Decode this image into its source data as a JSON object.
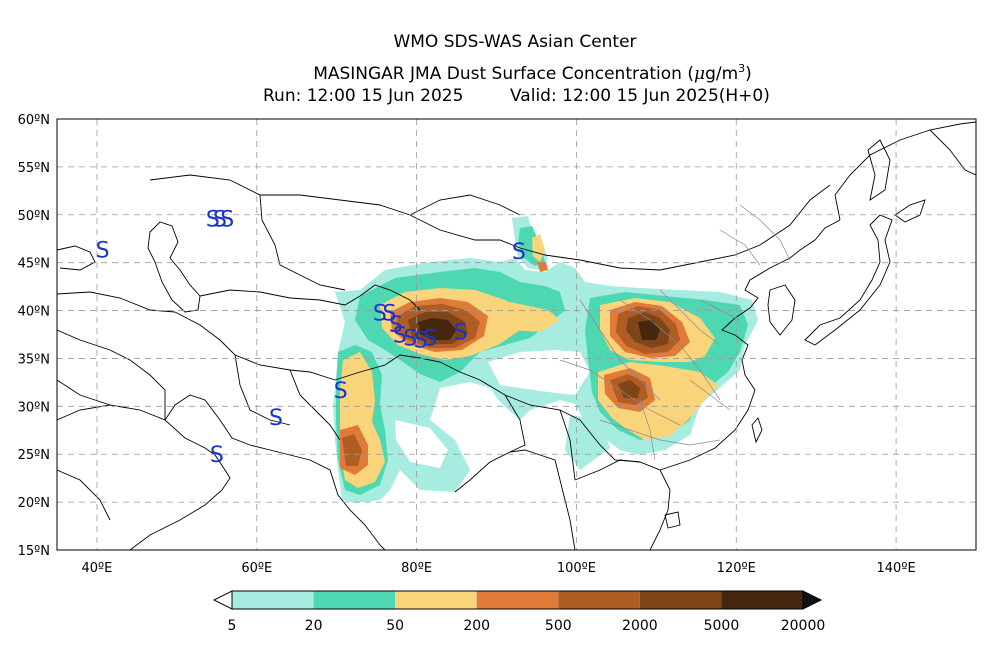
{
  "header": {
    "title": "WMO SDS-WAS Asian Center",
    "subtitle_prefix": "MASINGAR JMA Dust Surface Concentration (",
    "subtitle_mu": "μ",
    "subtitle_unit": "g/m",
    "subtitle_exp": "3",
    "subtitle_suffix": ")",
    "run": "Run: 12:00 15 Jun 2025",
    "valid": "Valid: 12:00 15 Jun 2025(H+0)"
  },
  "map": {
    "lon_range": [
      35,
      150
    ],
    "lat_range": [
      15,
      60
    ],
    "lat_ticks": [
      "15ºN",
      "20ºN",
      "25ºN",
      "30ºN",
      "35ºN",
      "40ºN",
      "45ºN",
      "50ºN",
      "55ºN",
      "60ºN"
    ],
    "lon_ticks": [
      "40ºE",
      "60ºE",
      "80ºE",
      "100ºE",
      "120ºE",
      "140ºE"
    ],
    "gridlines": true
  },
  "colorbar": {
    "levels": [
      "5",
      "20",
      "50",
      "200",
      "500",
      "2000",
      "5000",
      "20000"
    ],
    "colors": [
      "#a6ece0",
      "#4ed8b2",
      "#fad47a",
      "#e07a38",
      "#b05c25",
      "#7e4519",
      "#45260f"
    ]
  },
  "dust_storm_symbol": "S",
  "dust_storm_lonlat": [
    [
      40.7,
      46.4
    ],
    [
      54.5,
      49.6
    ],
    [
      55.4,
      49.6
    ],
    [
      56.3,
      49.6
    ],
    [
      92.8,
      46.2
    ],
    [
      75.4,
      39.8
    ],
    [
      76.6,
      39.8
    ],
    [
      77.4,
      38.6
    ],
    [
      77.9,
      37.5
    ],
    [
      79.2,
      37.2
    ],
    [
      80.5,
      37.0
    ],
    [
      81.7,
      37.2
    ],
    [
      85.5,
      37.8
    ],
    [
      55.0,
      25.0
    ],
    [
      62.4,
      28.9
    ],
    [
      70.5,
      31.7
    ]
  ]
}
